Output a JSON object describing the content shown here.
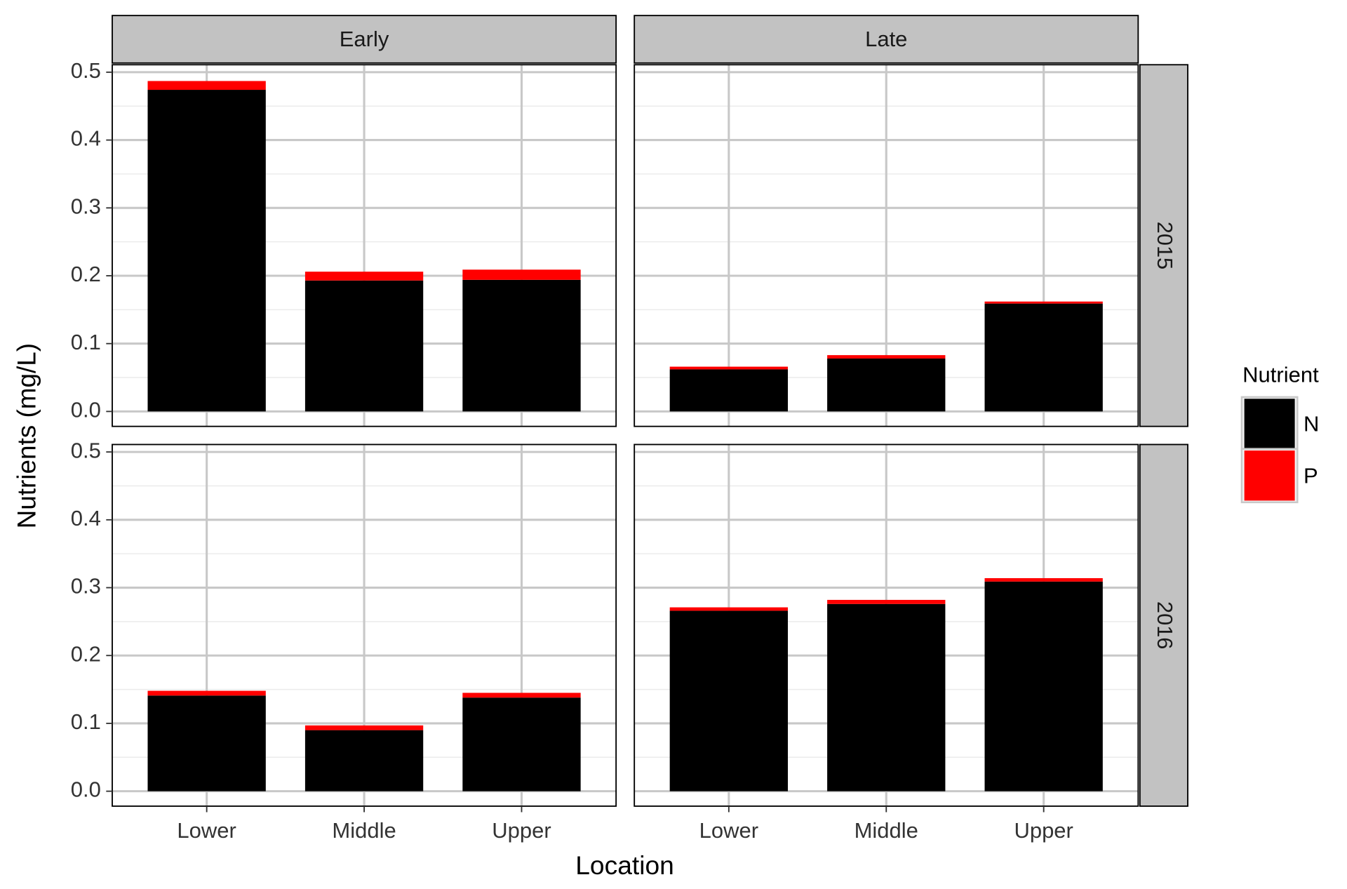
{
  "chart_data": {
    "type": "bar",
    "stacked": true,
    "x_label": "Location",
    "y_label": "Nutrients (mg/L)",
    "legend_title": "Nutrient",
    "categories": [
      "Lower",
      "Middle",
      "Upper"
    ],
    "column_facets": [
      "Early",
      "Late"
    ],
    "row_facets": [
      "2015",
      "2016"
    ],
    "panel_order": "row-major",
    "ylim": [
      -0.022,
      0.511
    ],
    "yticks": [
      {
        "value": 0,
        "label": "0.0"
      },
      0.1,
      0.2,
      0.3,
      0.4,
      0.5
    ],
    "grid": true,
    "series": [
      {
        "name": "N",
        "color": "#000000",
        "values": [
          [
            0.474,
            0.193,
            0.194
          ],
          [
            0.062,
            0.078,
            0.159
          ],
          [
            0.141,
            0.09,
            0.138
          ],
          [
            0.266,
            0.276,
            0.309
          ]
        ]
      },
      {
        "name": "P",
        "color": "#ff0000",
        "values": [
          [
            0.013,
            0.013,
            0.015
          ],
          [
            0.004,
            0.005,
            0.003
          ],
          [
            0.007,
            0.007,
            0.007
          ],
          [
            0.005,
            0.006,
            0.005
          ]
        ]
      }
    ]
  }
}
